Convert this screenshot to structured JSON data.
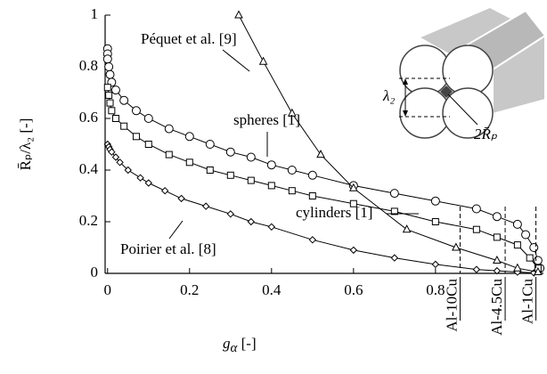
{
  "chart_data": {
    "type": "line",
    "xlabel": [
      "g",
      "α",
      " [-]"
    ],
    "ylabel": "R̄ₚ/λ₂ [-]",
    "xlim": [
      -0.006,
      1.059
    ],
    "ylim": [
      0,
      1
    ],
    "xticks": [
      0,
      0.2,
      0.4,
      0.6,
      0.8
    ],
    "yticks": [
      0,
      0.2,
      0.4,
      0.6,
      0.8,
      1
    ],
    "color": "#000000",
    "series": [
      {
        "name": "spheres [1]",
        "marker": "circle",
        "x": [
          0,
          0,
          0,
          0.003,
          0.006,
          0.01,
          0.02,
          0.04,
          0.07,
          0.1,
          0.15,
          0.2,
          0.25,
          0.3,
          0.35,
          0.4,
          0.45,
          0.5,
          0.6,
          0.7,
          0.8,
          0.9,
          0.95,
          1.0,
          1.02,
          1.04,
          1.05,
          1.055
        ],
        "values": [
          0.87,
          0.85,
          0.83,
          0.8,
          0.77,
          0.74,
          0.71,
          0.67,
          0.63,
          0.6,
          0.56,
          0.53,
          0.5,
          0.47,
          0.45,
          0.42,
          0.4,
          0.38,
          0.34,
          0.31,
          0.28,
          0.25,
          0.22,
          0.19,
          0.15,
          0.1,
          0.05,
          0.02
        ]
      },
      {
        "name": "cylinders [1]",
        "marker": "square",
        "x": [
          0,
          0.003,
          0.006,
          0.01,
          0.02,
          0.04,
          0.07,
          0.1,
          0.15,
          0.2,
          0.25,
          0.3,
          0.35,
          0.4,
          0.45,
          0.5,
          0.6,
          0.7,
          0.8,
          0.9,
          0.95,
          1.0,
          1.03,
          1.05
        ],
        "values": [
          0.72,
          0.69,
          0.66,
          0.63,
          0.6,
          0.57,
          0.53,
          0.5,
          0.46,
          0.43,
          0.4,
          0.38,
          0.36,
          0.34,
          0.32,
          0.3,
          0.27,
          0.24,
          0.2,
          0.17,
          0.14,
          0.11,
          0.06,
          0.02
        ]
      },
      {
        "name": "Poirier et al. [8]",
        "marker": "diamond",
        "x": [
          0,
          0.003,
          0.006,
          0.01,
          0.02,
          0.03,
          0.05,
          0.08,
          0.1,
          0.14,
          0.18,
          0.24,
          0.3,
          0.35,
          0.4,
          0.5,
          0.6,
          0.7,
          0.8,
          0.9,
          0.95,
          1.0,
          1.04
        ],
        "values": [
          0.5,
          0.49,
          0.48,
          0.47,
          0.45,
          0.43,
          0.4,
          0.37,
          0.35,
          0.32,
          0.29,
          0.26,
          0.23,
          0.2,
          0.18,
          0.13,
          0.09,
          0.06,
          0.035,
          0.015,
          0.01,
          0.005,
          0.002
        ]
      },
      {
        "name": "Péquet et al. [9]",
        "marker": "triangle",
        "x": [
          0.32,
          0.38,
          0.45,
          0.52,
          0.6,
          0.73,
          0.85,
          0.95,
          1.0,
          1.05
        ],
        "values": [
          1,
          0.82,
          0.62,
          0.46,
          0.33,
          0.17,
          0.1,
          0.05,
          0.02,
          0.005
        ]
      }
    ],
    "annotations": [
      {
        "x": 0.86,
        "label": "Al-10Cu"
      },
      {
        "x": 0.97,
        "label": "Al-4.5Cu"
      },
      {
        "x": 1.045,
        "label": "Al-1Cu"
      }
    ],
    "inset": {
      "spacing_label": "λ₂",
      "pore_label": "2R̄ₚ"
    }
  }
}
